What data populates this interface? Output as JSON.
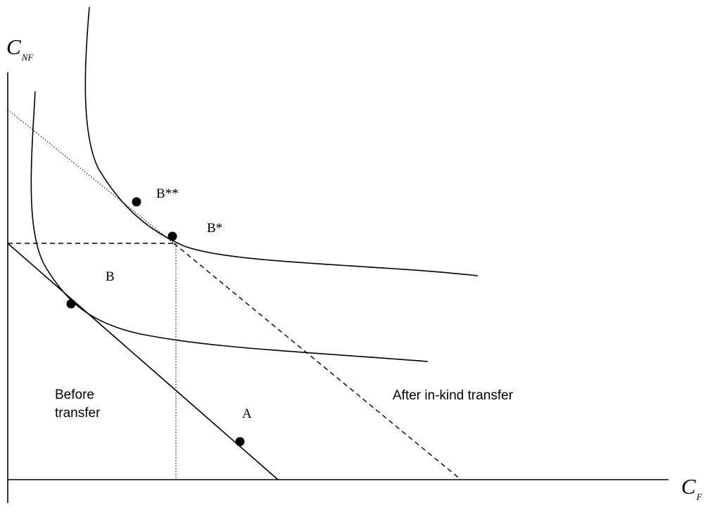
{
  "axes": {
    "y_label_main": "C",
    "y_label_sub": "NF",
    "x_label_main": "C",
    "x_label_sub": "F"
  },
  "labels": {
    "point_a": "A",
    "point_b": "B",
    "point_b_star": "B*",
    "point_b_double_star": "B**",
    "before_transfer": [
      "Before",
      "transfer"
    ],
    "after_transfer": "After in-kind transfer"
  },
  "colors": {
    "line": "#000000",
    "background": "#ffffff"
  }
}
